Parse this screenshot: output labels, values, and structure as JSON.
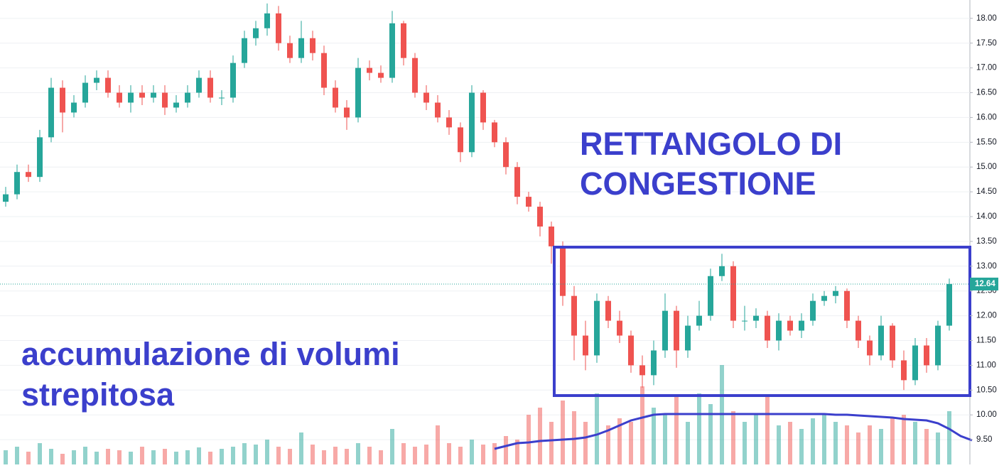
{
  "chart_data": {
    "type": "candlestick",
    "open": [
      14.3,
      14.45,
      14.9,
      14.8,
      15.6,
      16.6,
      16.1,
      16.3,
      16.7,
      16.8,
      16.5,
      16.3,
      16.5,
      16.4,
      16.5,
      16.2,
      16.3,
      16.5,
      16.8,
      16.4,
      16.4,
      17.1,
      17.6,
      17.8,
      18.1,
      17.5,
      17.2,
      17.6,
      17.3,
      16.6,
      16.2,
      16.0,
      17.0,
      16.9,
      16.8,
      17.9,
      17.2,
      16.5,
      16.3,
      16.0,
      15.8,
      15.3,
      16.5,
      15.9,
      15.5,
      15.0,
      14.4,
      14.2,
      13.8,
      13.4,
      12.4,
      11.6,
      11.2,
      12.3,
      11.9,
      11.6,
      11.0,
      10.8,
      11.3,
      12.1,
      11.3,
      11.8,
      12.0,
      12.8,
      13.0,
      11.9,
      11.9,
      12.0,
      11.5,
      11.9,
      11.7,
      11.9,
      12.3,
      12.4,
      12.5,
      11.9,
      11.5,
      11.2,
      11.8,
      11.1,
      10.7,
      11.4,
      11.0,
      11.8
    ],
    "high": [
      14.6,
      15.05,
      15.05,
      15.75,
      16.8,
      16.75,
      16.45,
      16.85,
      16.95,
      16.95,
      16.65,
      16.65,
      16.65,
      16.65,
      16.65,
      16.45,
      16.65,
      16.95,
      16.95,
      16.55,
      17.25,
      17.75,
      17.95,
      18.3,
      18.25,
      17.65,
      17.95,
      17.75,
      17.45,
      16.75,
      16.35,
      17.2,
      17.15,
      17.05,
      18.15,
      17.95,
      17.3,
      16.65,
      16.45,
      16.15,
      15.9,
      16.65,
      16.55,
      15.95,
      15.6,
      15.1,
      14.5,
      14.3,
      13.9,
      13.5,
      12.6,
      11.9,
      12.45,
      12.4,
      12.1,
      11.7,
      11.2,
      11.5,
      12.45,
      12.2,
      12.0,
      12.3,
      12.95,
      13.25,
      13.1,
      12.2,
      12.15,
      12.1,
      12.05,
      12.0,
      12.05,
      12.45,
      12.5,
      12.6,
      12.55,
      12.0,
      11.6,
      12.0,
      11.85,
      11.3,
      11.55,
      11.55,
      11.9,
      12.75
    ],
    "low": [
      14.2,
      14.35,
      14.7,
      14.7,
      15.5,
      15.7,
      16.0,
      16.2,
      16.55,
      16.4,
      16.2,
      16.1,
      16.25,
      16.3,
      16.05,
      16.1,
      16.2,
      16.4,
      16.3,
      16.25,
      16.3,
      17.0,
      17.45,
      17.65,
      17.35,
      17.1,
      17.1,
      17.15,
      16.45,
      16.1,
      15.75,
      15.9,
      16.75,
      16.7,
      16.7,
      17.05,
      16.4,
      16.15,
      15.9,
      15.65,
      15.1,
      15.2,
      15.75,
      15.4,
      14.85,
      14.25,
      14.1,
      13.6,
      13.05,
      12.2,
      11.1,
      10.9,
      11.05,
      11.75,
      11.45,
      10.85,
      10.55,
      10.6,
      11.15,
      10.95,
      11.15,
      11.7,
      11.9,
      12.7,
      11.75,
      11.7,
      11.75,
      11.35,
      11.3,
      11.6,
      11.55,
      11.8,
      12.2,
      12.25,
      11.75,
      11.35,
      11.0,
      11.1,
      10.95,
      10.5,
      10.6,
      10.85,
      10.9,
      11.7
    ],
    "close": [
      14.45,
      14.9,
      14.8,
      15.6,
      16.6,
      16.1,
      16.3,
      16.7,
      16.8,
      16.5,
      16.3,
      16.5,
      16.4,
      16.5,
      16.2,
      16.3,
      16.5,
      16.8,
      16.4,
      16.4,
      17.1,
      17.6,
      17.8,
      18.1,
      17.5,
      17.2,
      17.6,
      17.3,
      16.6,
      16.2,
      16.0,
      17.0,
      16.9,
      16.8,
      17.9,
      17.2,
      16.5,
      16.3,
      16.0,
      15.8,
      15.3,
      16.5,
      15.9,
      15.5,
      15.0,
      14.4,
      14.2,
      13.8,
      13.4,
      12.4,
      11.6,
      11.2,
      12.3,
      11.9,
      11.6,
      11.0,
      10.8,
      11.3,
      12.1,
      11.3,
      11.8,
      12.0,
      12.8,
      13.0,
      11.9,
      11.9,
      12.0,
      11.5,
      11.9,
      11.7,
      11.9,
      12.3,
      12.4,
      12.5,
      11.9,
      11.5,
      11.2,
      11.8,
      11.1,
      10.7,
      11.4,
      11.0,
      11.8,
      12.64
    ],
    "volumes": [
      20,
      25,
      18,
      30,
      22,
      15,
      20,
      25,
      18,
      22,
      20,
      18,
      25,
      20,
      22,
      18,
      20,
      24,
      18,
      22,
      25,
      30,
      28,
      35,
      25,
      22,
      45,
      28,
      20,
      25,
      22,
      30,
      25,
      20,
      50,
      30,
      25,
      28,
      55,
      30,
      25,
      35,
      28,
      30,
      40,
      35,
      70,
      80,
      60,
      90,
      75,
      60,
      100,
      55,
      65,
      60,
      110,
      80,
      70,
      95,
      60,
      100,
      85,
      140,
      75,
      60,
      70,
      95,
      55,
      60,
      50,
      65,
      70,
      60,
      55,
      45,
      55,
      50,
      65,
      70,
      60,
      50,
      45,
      75
    ],
    "volume_ma": [
      null,
      null,
      null,
      null,
      null,
      null,
      null,
      null,
      null,
      null,
      null,
      null,
      null,
      null,
      null,
      null,
      null,
      null,
      null,
      null,
      null,
      null,
      null,
      null,
      null,
      null,
      null,
      null,
      null,
      null,
      null,
      null,
      null,
      null,
      null,
      null,
      null,
      null,
      null,
      null,
      null,
      null,
      null,
      22,
      26,
      30,
      31,
      33,
      34,
      35,
      36,
      38,
      42,
      48,
      55,
      62,
      66,
      70,
      71,
      71,
      71,
      71,
      71,
      71,
      71,
      71,
      71,
      71,
      71,
      71,
      71,
      71,
      71,
      70,
      70,
      69,
      68,
      67,
      66,
      64,
      63,
      62,
      58,
      50,
      40,
      34
    ],
    "vlim": [
      0,
      200
    ],
    "up_color": "#26a69a",
    "down_color": "#ef5350",
    "ma_color": "#3b3fcc",
    "ylim": [
      9.0,
      18.37
    ],
    "yticks": [
      {
        "value": 9.5,
        "label": "9.50"
      },
      {
        "value": 10,
        "label": "10.00"
      },
      {
        "value": 10.5,
        "label": "10.50"
      },
      {
        "value": 11,
        "label": "11.00"
      },
      {
        "value": 11.5,
        "label": "11.50"
      },
      {
        "value": 12,
        "label": "12.00"
      },
      {
        "value": 12.5,
        "label": "12.50"
      },
      {
        "value": 13,
        "label": "13.00"
      },
      {
        "value": 13.5,
        "label": "13.50"
      },
      {
        "value": 14,
        "label": "14.00"
      },
      {
        "value": 14.5,
        "label": "14.50"
      },
      {
        "value": 15,
        "label": "15.00"
      },
      {
        "value": 15.5,
        "label": "15.50"
      },
      {
        "value": 16,
        "label": "16.00"
      },
      {
        "value": 16.5,
        "label": "16.50"
      },
      {
        "value": 17,
        "label": "17.00"
      },
      {
        "value": 17.5,
        "label": "17.50"
      },
      {
        "value": 18,
        "label": "18.00"
      }
    ],
    "grid": true,
    "last_price": 12.64,
    "annotations": [
      "RETTANGOLO DI",
      "CONGESTIONE",
      "accumulazione di volumi",
      "strepitosa"
    ]
  }
}
